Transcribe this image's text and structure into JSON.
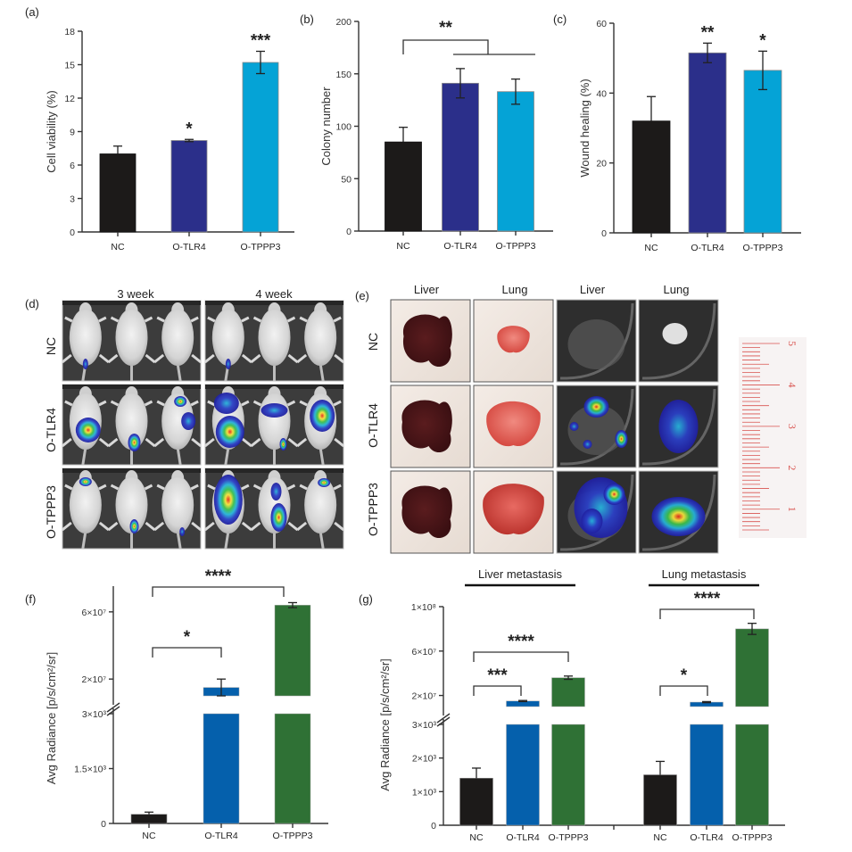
{
  "figure": {
    "panels": [
      "(a)",
      "(b)",
      "(c)",
      "(d)",
      "(e)",
      "(f)",
      "(g)"
    ],
    "colors": {
      "nc": "#1c1a19",
      "tlr4_ab": "#2b2f8a",
      "tppp3_ab": "#05a3d6",
      "tlr4_fg": "#0560ac",
      "tppp3_fg": "#2f7135"
    }
  },
  "imaging": {
    "d": {
      "column_headers": [
        "3 week",
        "4 week"
      ],
      "row_labels": [
        "NC",
        "O-TLR4",
        "O-TPPP3"
      ]
    },
    "e": {
      "column_headers": [
        "Liver",
        "Lung",
        "Liver",
        "Lung"
      ],
      "row_labels": [
        "NC",
        "O-TLR4",
        "O-TPPP3"
      ],
      "ruler_numbers": [
        "5",
        "4",
        "3",
        "2",
        "1"
      ]
    }
  },
  "chart_data": [
    {
      "panel": "(a)",
      "type": "bar",
      "title": "",
      "xlabel": "",
      "ylabel": "Cell viability (%)",
      "categories": [
        "NC",
        "O-TLR4",
        "O-TPPP3"
      ],
      "values": [
        7.0,
        8.2,
        15.2
      ],
      "errors": [
        0.7,
        0.1,
        1.0
      ],
      "error_style": [
        "up",
        "both",
        "both"
      ],
      "significance": [
        "",
        "*",
        "***"
      ],
      "ylim": [
        0,
        18
      ],
      "yticks": [
        0,
        3,
        6,
        9,
        12,
        15,
        18
      ],
      "ytick_labels": [
        "0",
        "3",
        "6",
        "9",
        "12",
        "15",
        "18"
      ],
      "grid": false
    },
    {
      "panel": "(b)",
      "type": "bar",
      "title": "",
      "xlabel": "",
      "ylabel": "Colony number",
      "categories": [
        "NC",
        "O-TLR4",
        "O-TPPP3"
      ],
      "values": [
        85,
        141,
        133
      ],
      "errors": [
        14,
        14,
        12
      ],
      "error_style": [
        "up",
        "both",
        "both"
      ],
      "comparisons": [
        {
          "from": "NC",
          "to": [
            "O-TLR4",
            "O-TPPP3"
          ],
          "label": "**"
        }
      ],
      "ylim": [
        0,
        200
      ],
      "yticks": [
        0,
        50,
        100,
        150,
        200
      ],
      "ytick_labels": [
        "0",
        "50",
        "100",
        "150",
        "200"
      ],
      "grid": false
    },
    {
      "panel": "(c)",
      "type": "bar",
      "title": "",
      "xlabel": "",
      "ylabel": "Wound healing (%)",
      "categories": [
        "NC",
        "O-TLR4",
        "O-TPPP3"
      ],
      "values": [
        32,
        51.5,
        46.5
      ],
      "errors": [
        7,
        2.8,
        5.5
      ],
      "error_style": [
        "up",
        "both",
        "both"
      ],
      "significance": [
        "",
        "**",
        "*"
      ],
      "ylim": [
        0,
        60
      ],
      "yticks": [
        0,
        20,
        40,
        60
      ],
      "ytick_labels": [
        "0",
        "20",
        "40",
        "60"
      ],
      "grid": false
    },
    {
      "panel": "(f)",
      "type": "bar",
      "title": "",
      "xlabel": "",
      "ylabel": "Avg Radiance [p/s/cm²/sr]",
      "categories": [
        "NC",
        "O-TLR4",
        "O-TPPP3"
      ],
      "values": [
        250,
        15000000,
        64000000
      ],
      "errors": [
        60,
        5000000,
        1500000
      ],
      "error_style": [
        "up",
        "both",
        "both"
      ],
      "comparisons": [
        {
          "from": "NC",
          "to": [
            "O-TLR4"
          ],
          "label": "*"
        },
        {
          "from": "NC",
          "to": [
            "O-TPPP3"
          ],
          "label": "****"
        }
      ],
      "broken_axis": {
        "lower": [
          0,
          3000
        ],
        "upper": [
          10000000,
          70000000
        ]
      },
      "yticks": [
        0,
        1500,
        3000,
        20000000,
        60000000
      ],
      "ytick_labels": [
        "0",
        "1.5×10³",
        "3×10³",
        "2×10⁷",
        "6×10⁷"
      ],
      "grid": false
    },
    {
      "panel": "(g)",
      "type": "bar",
      "title": "",
      "xlabel": "",
      "ylabel": "Avg Radiance [p/s/cm²/sr]",
      "groups": [
        "Liver metastasis",
        "Lung metastasis"
      ],
      "categories": [
        "NC",
        "O-TLR4",
        "O-TPPP3"
      ],
      "series": [
        {
          "name": "Liver metastasis",
          "values": [
            1400,
            15000000,
            36000000
          ],
          "errors": [
            300,
            500000,
            1500000
          ],
          "error_style": [
            "up",
            "both",
            "both"
          ]
        },
        {
          "name": "Lung metastasis",
          "values": [
            1500,
            14000000,
            80000000
          ],
          "errors": [
            400,
            500000,
            5000000
          ],
          "error_style": [
            "up",
            "both",
            "both"
          ]
        }
      ],
      "comparisons": [
        {
          "group": "Liver metastasis",
          "from": "NC",
          "to": [
            "O-TLR4"
          ],
          "label": "***"
        },
        {
          "group": "Liver metastasis",
          "from": "NC",
          "to": [
            "O-TPPP3"
          ],
          "label": "****"
        },
        {
          "group": "Lung metastasis",
          "from": "NC",
          "to": [
            "O-TLR4"
          ],
          "label": "*"
        },
        {
          "group": "Lung metastasis",
          "from": "NC",
          "to": [
            "O-TPPP3"
          ],
          "label": "****"
        }
      ],
      "broken_axis": {
        "lower": [
          0,
          3000
        ],
        "upper": [
          10000000,
          100000000
        ]
      },
      "yticks": [
        0,
        1000,
        2000,
        3000,
        20000000,
        60000000,
        100000000
      ],
      "ytick_labels": [
        "0",
        "1×10³",
        "2×10³",
        "3×10³",
        "2×10⁷",
        "6×10⁷",
        "1×10⁸"
      ],
      "grid": false
    }
  ]
}
